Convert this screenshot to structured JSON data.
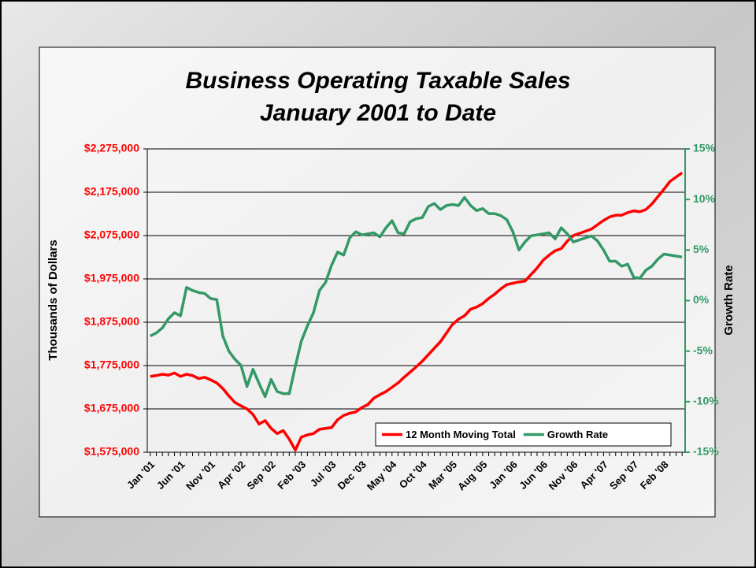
{
  "chart_data": {
    "type": "line",
    "title": "Business Operating Taxable Sales",
    "subtitle": "January 2001 to Date",
    "y_label": "Thousands of Dollars",
    "y2_label": "Growth Rate",
    "categories": [
      "Jan '01",
      null,
      null,
      null,
      null,
      "Jun '01",
      null,
      null,
      null,
      null,
      "Nov '01",
      null,
      null,
      null,
      null,
      "Apr '02",
      null,
      null,
      null,
      null,
      "Sep '02",
      null,
      null,
      null,
      null,
      "Feb '03",
      null,
      null,
      null,
      null,
      "Jul '03",
      null,
      null,
      null,
      null,
      "Dec '03",
      null,
      null,
      null,
      null,
      "May '04",
      null,
      null,
      null,
      null,
      "Oct '04",
      null,
      null,
      null,
      null,
      "Mar '05",
      null,
      null,
      null,
      null,
      "Aug '05",
      null,
      null,
      null,
      null,
      "Jan '06",
      null,
      null,
      null,
      null,
      "Jun '06",
      null,
      null,
      null,
      null,
      "Nov '06",
      null,
      null,
      null,
      null,
      "Apr '07",
      null,
      null,
      null,
      null,
      "Sep '07",
      null,
      null,
      null,
      null,
      "Feb '08",
      null,
      null,
      null
    ],
    "series": [
      {
        "name": "12 Month Moving Total",
        "color": "#ff0000",
        "axis": "y",
        "values": [
          1750000,
          1752000,
          1755000,
          1753000,
          1758000,
          1750000,
          1755000,
          1752000,
          1745000,
          1748000,
          1742000,
          1735000,
          1722000,
          1705000,
          1690000,
          1682000,
          1675000,
          1662000,
          1640000,
          1648000,
          1630000,
          1618000,
          1625000,
          1605000,
          1580000,
          1610000,
          1615000,
          1618000,
          1628000,
          1630000,
          1632000,
          1650000,
          1660000,
          1665000,
          1668000,
          1678000,
          1685000,
          1700000,
          1708000,
          1715000,
          1725000,
          1735000,
          1748000,
          1760000,
          1772000,
          1785000,
          1800000,
          1815000,
          1830000,
          1850000,
          1870000,
          1882000,
          1890000,
          1905000,
          1910000,
          1918000,
          1930000,
          1940000,
          1952000,
          1962000,
          1965000,
          1968000,
          1970000,
          1985000,
          2000000,
          2018000,
          2030000,
          2040000,
          2045000,
          2062000,
          2075000,
          2080000,
          2085000,
          2090000,
          2100000,
          2110000,
          2118000,
          2122000,
          2122000,
          2128000,
          2132000,
          2130000,
          2135000,
          2148000,
          2165000,
          2182000,
          2200000,
          2210000,
          2220000
        ]
      },
      {
        "name": "Growth Rate",
        "color": "#339966",
        "axis": "y2",
        "values": [
          -3.5,
          -3.2,
          -2.7,
          -1.8,
          -1.2,
          -1.5,
          1.3,
          1.0,
          0.8,
          0.7,
          0.2,
          0.1,
          -3.5,
          -5.0,
          -5.8,
          -6.4,
          -8.5,
          -6.8,
          -8.2,
          -9.5,
          -7.8,
          -9.0,
          -9.2,
          -9.2,
          -6.5,
          -4.0,
          -2.5,
          -1.2,
          1.0,
          1.8,
          3.5,
          4.8,
          4.5,
          6.2,
          6.8,
          6.5,
          6.6,
          6.7,
          6.3,
          7.2,
          7.9,
          6.7,
          6.6,
          7.8,
          8.1,
          8.2,
          9.3,
          9.6,
          9.0,
          9.4,
          9.5,
          9.4,
          10.2,
          9.4,
          8.9,
          9.1,
          8.6,
          8.6,
          8.4,
          8.0,
          6.8,
          5.0,
          5.8,
          6.4,
          6.5,
          6.6,
          6.7,
          6.1,
          7.2,
          6.6,
          5.8,
          6.0,
          6.2,
          6.4,
          5.9,
          5.0,
          3.9,
          3.9,
          3.4,
          3.6,
          2.3,
          2.2,
          3.0,
          3.4,
          4.1,
          4.6,
          4.5,
          4.4,
          4.3
        ]
      }
    ],
    "ylim": [
      1575000,
      2275000
    ],
    "yticks": [
      {
        "value": 1575000,
        "label": "$1,575,000"
      },
      {
        "value": 1675000,
        "label": "$1,675,000"
      },
      {
        "value": 1775000,
        "label": "$1,775,000"
      },
      {
        "value": 1875000,
        "label": "$1,875,000"
      },
      {
        "value": 1975000,
        "label": "$1,975,000"
      },
      {
        "value": 2075000,
        "label": "$2,075,000"
      },
      {
        "value": 2175000,
        "label": "$2,175,000"
      },
      {
        "value": 2275000,
        "label": "$2,275,000"
      }
    ],
    "y2lim": [
      -15,
      15
    ],
    "y2ticks": [
      {
        "value": -15,
        "label": "-15%"
      },
      {
        "value": -10,
        "label": "-10%"
      },
      {
        "value": -5,
        "label": "-5%"
      },
      {
        "value": 0,
        "label": "0%"
      },
      {
        "value": 5,
        "label": "5%"
      },
      {
        "value": 10,
        "label": "10%"
      },
      {
        "value": 15,
        "label": "15%"
      }
    ],
    "grid": true,
    "legend": "bottom-right"
  }
}
